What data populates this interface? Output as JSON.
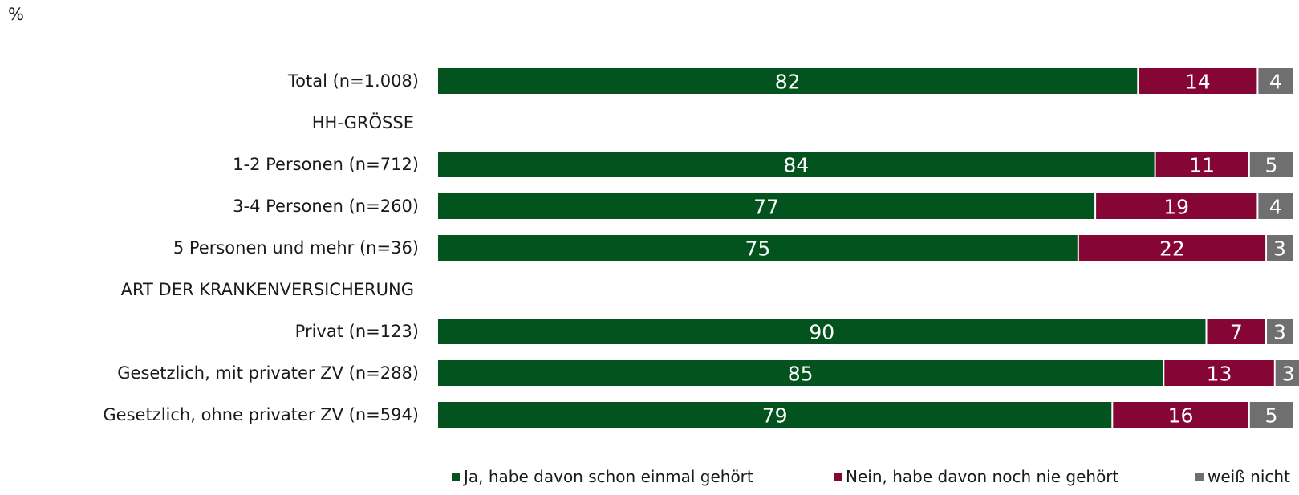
{
  "unit": "%",
  "colors": {
    "ja": "#03531f",
    "nein": "#850535",
    "weiss": "#6f6f6f"
  },
  "chart_data": {
    "type": "bar",
    "orientation": "horizontal",
    "stacked": true,
    "title": "",
    "xlabel": "",
    "ylabel": "",
    "xlim": [
      0,
      100
    ],
    "grid": false,
    "legend_position": "bottom",
    "rows": [
      {
        "label": "Total (n=1.008)",
        "values": [
          82,
          14,
          4
        ]
      },
      {
        "label": "HH-GRÖSSE",
        "heading": true
      },
      {
        "label": "1-2 Personen (n=712)",
        "values": [
          84,
          11,
          5
        ]
      },
      {
        "label": "3-4 Personen (n=260)",
        "values": [
          77,
          19,
          4
        ]
      },
      {
        "label": "5 Personen und mehr (n=36)",
        "values": [
          75,
          22,
          3
        ]
      },
      {
        "label": "ART DER KRANKENVERSICHERUNG",
        "heading": true
      },
      {
        "label": "Privat (n=123)",
        "values": [
          90,
          7,
          3
        ]
      },
      {
        "label": "Gesetzlich, mit privater ZV (n=288)",
        "values": [
          85,
          13,
          3
        ]
      },
      {
        "label": "Gesetzlich, ohne privater ZV (n=594)",
        "values": [
          79,
          16,
          5
        ]
      }
    ],
    "series": [
      {
        "name": "Ja, habe davon schon einmal gehört",
        "color": "#03531f"
      },
      {
        "name": "Nein, habe davon noch nie gehört",
        "color": "#850535"
      },
      {
        "name": "weiß nicht",
        "color": "#6f6f6f"
      }
    ]
  }
}
